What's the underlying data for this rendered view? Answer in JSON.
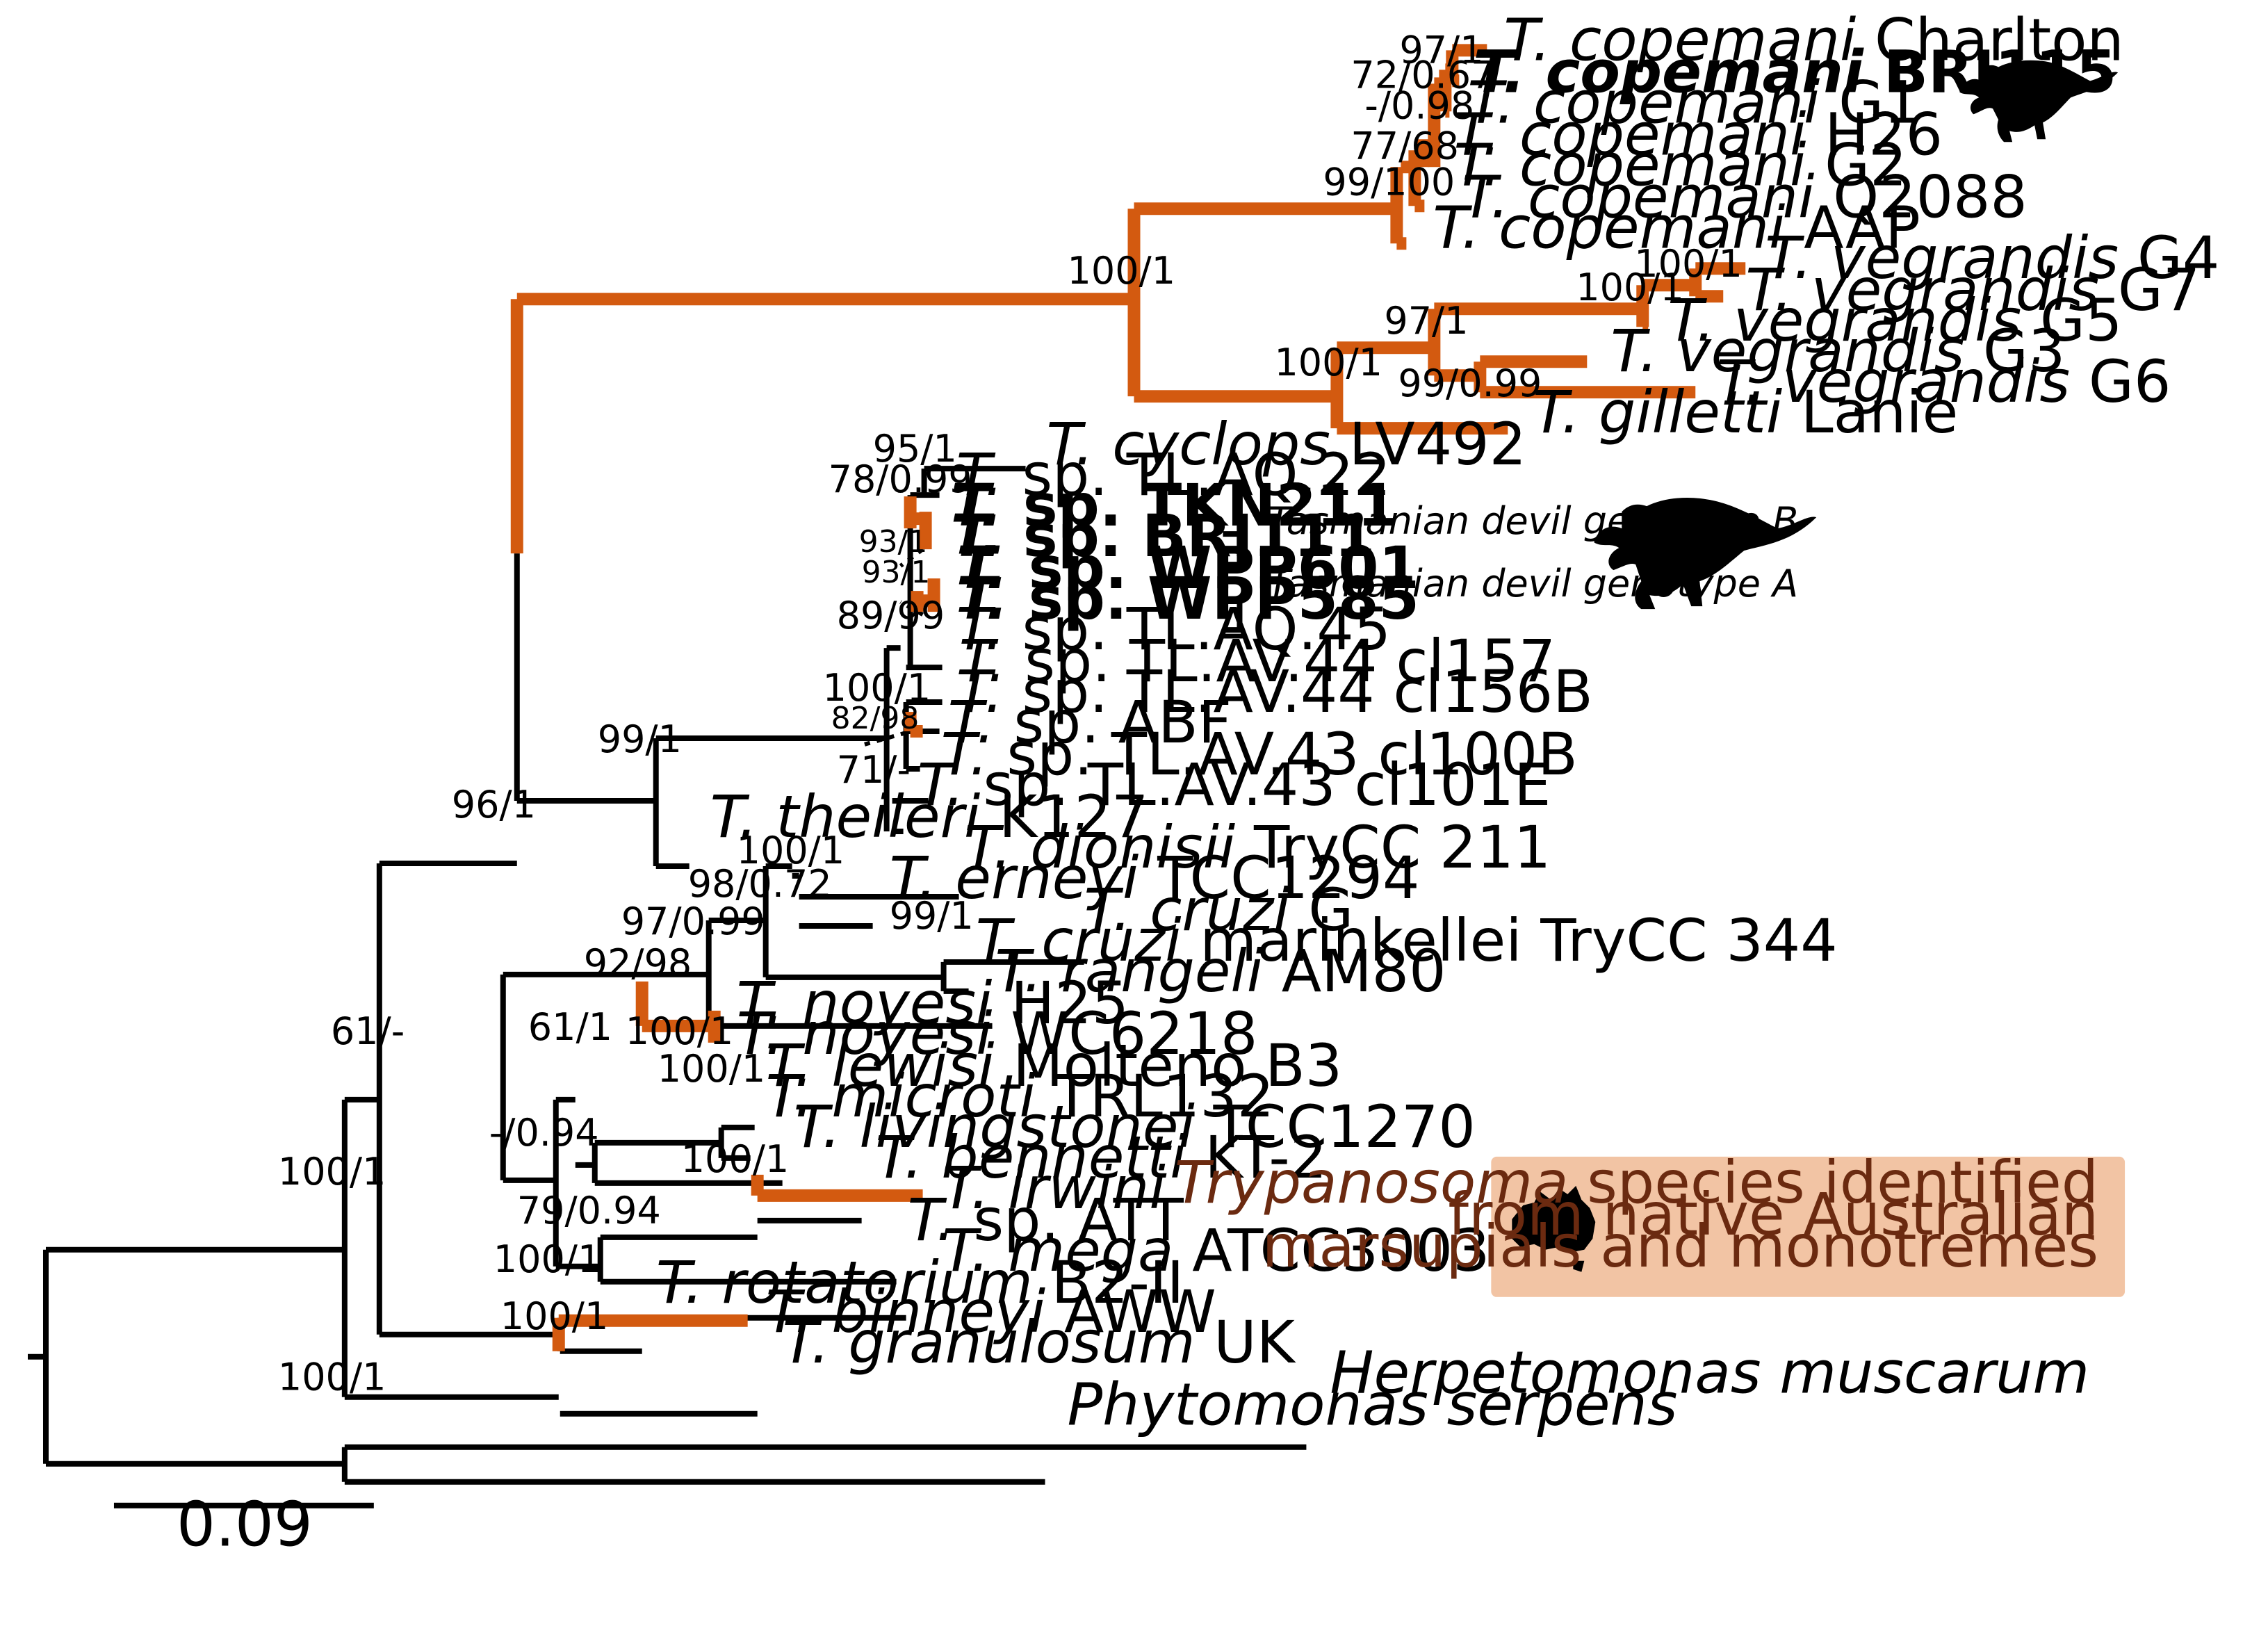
{
  "figure": {
    "type": "phylogenetic-tree",
    "organism_genus": "Trypanosoma"
  },
  "colors": {
    "highlight_branch": "#d35a10",
    "default_branch": "#000000",
    "legend_background": "#f2c4a4",
    "legend_text": "#6b2a10"
  },
  "taxa": [
    {
      "species": "T. copemani",
      "strain": "Charlton",
      "highlight": true,
      "bold": false
    },
    {
      "species": "T. copemani",
      "strain": "BRI115",
      "highlight": true,
      "bold": true
    },
    {
      "species": "T. copemani",
      "strain": "G1",
      "highlight": true,
      "bold": false
    },
    {
      "species": "T. copemani",
      "strain": "H26",
      "highlight": true,
      "bold": false
    },
    {
      "species": "T. copemani",
      "strain": "G2",
      "highlight": true,
      "bold": false
    },
    {
      "species": "T. copemani",
      "strain": "Q2088",
      "highlight": true,
      "bold": false
    },
    {
      "species": "T. copemani",
      "strain": "AAP",
      "highlight": true,
      "bold": false
    },
    {
      "species": "T. vegrandis",
      "strain": "G4",
      "highlight": true,
      "bold": false
    },
    {
      "species": "T. vegrandis",
      "strain": "G7",
      "highlight": true,
      "bold": false
    },
    {
      "species": "T. vegrandis",
      "strain": "G5",
      "highlight": true,
      "bold": false
    },
    {
      "species": "T. vegrandis",
      "strain": "G3",
      "highlight": true,
      "bold": false
    },
    {
      "species": "T. vegrandis",
      "strain": "G6",
      "highlight": true,
      "bold": false
    },
    {
      "species": "T. gilletti",
      "strain": "Lanie",
      "highlight": true,
      "bold": false
    },
    {
      "species": "T. cyclops",
      "strain": "LV492",
      "highlight": false,
      "bold": false
    },
    {
      "species": "T.",
      "strain": "sp. TL.AQ.22",
      "highlight": false,
      "bold": false
    },
    {
      "species": "T.",
      "strain": "sp. TKN211",
      "highlight": true,
      "bold": true
    },
    {
      "species": "T.",
      "strain": "sp. BRI111",
      "highlight": true,
      "bold": true
    },
    {
      "species": "T.",
      "strain": "sp. WPP601",
      "highlight": true,
      "bold": true
    },
    {
      "species": "T.",
      "strain": "sp. WPP585",
      "highlight": true,
      "bold": true
    },
    {
      "species": "T.",
      "strain": "sp. TL.AQ.45",
      "highlight": false,
      "bold": false
    },
    {
      "species": "T.",
      "strain": "sp. TL.AV.44 cl157",
      "highlight": false,
      "bold": false
    },
    {
      "species": "T.",
      "strain": "sp. TL.AV.44 cl156B",
      "highlight": false,
      "bold": false
    },
    {
      "species": "T.",
      "strain": "sp. ABF",
      "highlight": true,
      "bold": false
    },
    {
      "species": "T.",
      "strain": "sp. TL.AV.43 cl100B",
      "highlight": false,
      "bold": false
    },
    {
      "species": "T.",
      "strain": "sp. TL.AV.43 cl101E",
      "highlight": false,
      "bold": false
    },
    {
      "species": "T. theileri",
      "strain": "K127",
      "highlight": false,
      "bold": false
    },
    {
      "species": "T. dionisii",
      "strain": "TryCC 211",
      "highlight": false,
      "bold": false
    },
    {
      "species": "T. erneyi",
      "strain": "TCC1294",
      "highlight": false,
      "bold": false
    },
    {
      "species": "T. cruzi",
      "strain": "G",
      "highlight": false,
      "bold": false
    },
    {
      "species": "T. cruzi",
      "strain": "marinkellei TryCC 344",
      "highlight": false,
      "bold": false
    },
    {
      "species": "T. rangeli",
      "strain": "AM80",
      "highlight": false,
      "bold": false
    },
    {
      "species": "T. noyesi",
      "strain": "H25",
      "highlight": true,
      "bold": false
    },
    {
      "species": "T. noyesi",
      "strain": "WC6218",
      "highlight": true,
      "bold": false
    },
    {
      "species": "T. lewisi",
      "strain": "Molteno B3",
      "highlight": false,
      "bold": false
    },
    {
      "species": "T. microti",
      "strain": "TRL132",
      "highlight": false,
      "bold": false
    },
    {
      "species": "T. livingstonei",
      "strain": "TCC1270",
      "highlight": false,
      "bold": false
    },
    {
      "species": "T. bennetti",
      "strain": "KT-2",
      "highlight": false,
      "bold": false
    },
    {
      "species": "T. irwini",
      "strain": "",
      "highlight": true,
      "bold": false
    },
    {
      "species": "T.",
      "strain": "sp. ATT",
      "highlight": false,
      "bold": false
    },
    {
      "species": "T. mega",
      "strain": "ATCC30038",
      "highlight": false,
      "bold": false
    },
    {
      "species": "T. rotatorium",
      "strain": "B2-II",
      "highlight": false,
      "bold": false
    },
    {
      "species": "T. binneyi",
      "strain": "AWW",
      "highlight": true,
      "bold": false
    },
    {
      "species": "T. granulosum",
      "strain": "UK",
      "highlight": false,
      "bold": false
    },
    {
      "species": "Herpetomonas muscarum",
      "strain": "",
      "highlight": false,
      "bold": false
    },
    {
      "species": "Phytomonas serpens",
      "strain": "",
      "highlight": false,
      "bold": false
    }
  ],
  "support_values": [
    "97/1",
    "72/0.67",
    "-/0.98",
    "77/68",
    "99/100",
    "100/1",
    "100/1",
    "100/1",
    "97/1",
    "100/1",
    "99/0.99",
    "95/1",
    "78/0.99",
    "93/1",
    "93/1",
    "89/99",
    "100/1",
    "82/98",
    "71/-",
    "99/1",
    "96/1",
    "100/1",
    "98/0.72",
    "99/1",
    "97/0.99",
    "92/98",
    "100/1",
    "61/1",
    "100/1",
    "-/0.94",
    "100/1",
    "79/0.94",
    "100/1",
    "61/-",
    "100/1",
    "100/1"
  ],
  "genotypes": {
    "b": "Tasmanian devil genotype B",
    "a": "Tasmanian devil genotype A"
  },
  "legend": {
    "genus": "Trypanosoma",
    "line1_rest": " species identified",
    "line2": "from native Australian",
    "line3": "marsupials and monotremes"
  },
  "scale_bar": {
    "label": "0.09",
    "value": 0.09
  },
  "icons": [
    "tasmanian-devil-silhouette-icon",
    "australia-map-icon"
  ]
}
